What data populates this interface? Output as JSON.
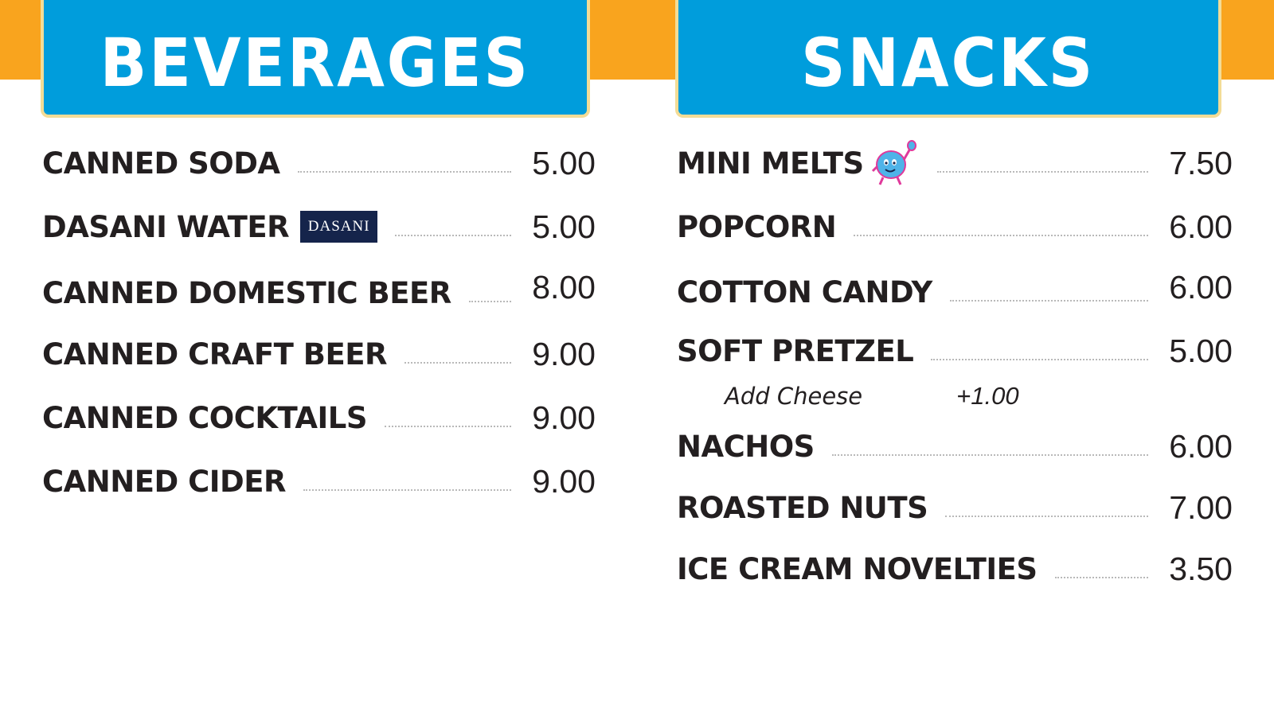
{
  "beverages": {
    "title": "BEVERAGES",
    "items": [
      {
        "name": "CANNED SODA",
        "price": "5.00"
      },
      {
        "name": "DASANI WATER",
        "price": "5.00",
        "logo_text": "DASANI"
      },
      {
        "name": "CANNED DOMESTIC BEER",
        "price": "8.00"
      },
      {
        "name": "CANNED CRAFT BEER",
        "price": "9.00"
      },
      {
        "name": "CANNED COCKTAILS",
        "price": "9.00"
      },
      {
        "name": "CANNED CIDER",
        "price": "9.00"
      }
    ]
  },
  "snacks": {
    "title": "SNACKS",
    "items": [
      {
        "name": "MINI MELTS",
        "price": "7.50",
        "icon": "ice-cream-mascot-icon"
      },
      {
        "name": "POPCORN",
        "price": "6.00"
      },
      {
        "name": "COTTON CANDY",
        "price": "6.00"
      },
      {
        "name": "SOFT PRETZEL",
        "price": "5.00",
        "addon": {
          "name": "Add Cheese",
          "price": "+1.00"
        }
      },
      {
        "name": "NACHOS",
        "price": "6.00"
      },
      {
        "name": "ROASTED NUTS",
        "price": "7.00"
      },
      {
        "name": "ICE CREAM NOVELTIES",
        "price": "3.50"
      }
    ]
  },
  "colors": {
    "header_blue": "#009ddc",
    "band_orange": "#f9a41e",
    "header_border": "#f3dc96",
    "text_dark": "#231f20",
    "dasani_navy": "#15244b"
  }
}
